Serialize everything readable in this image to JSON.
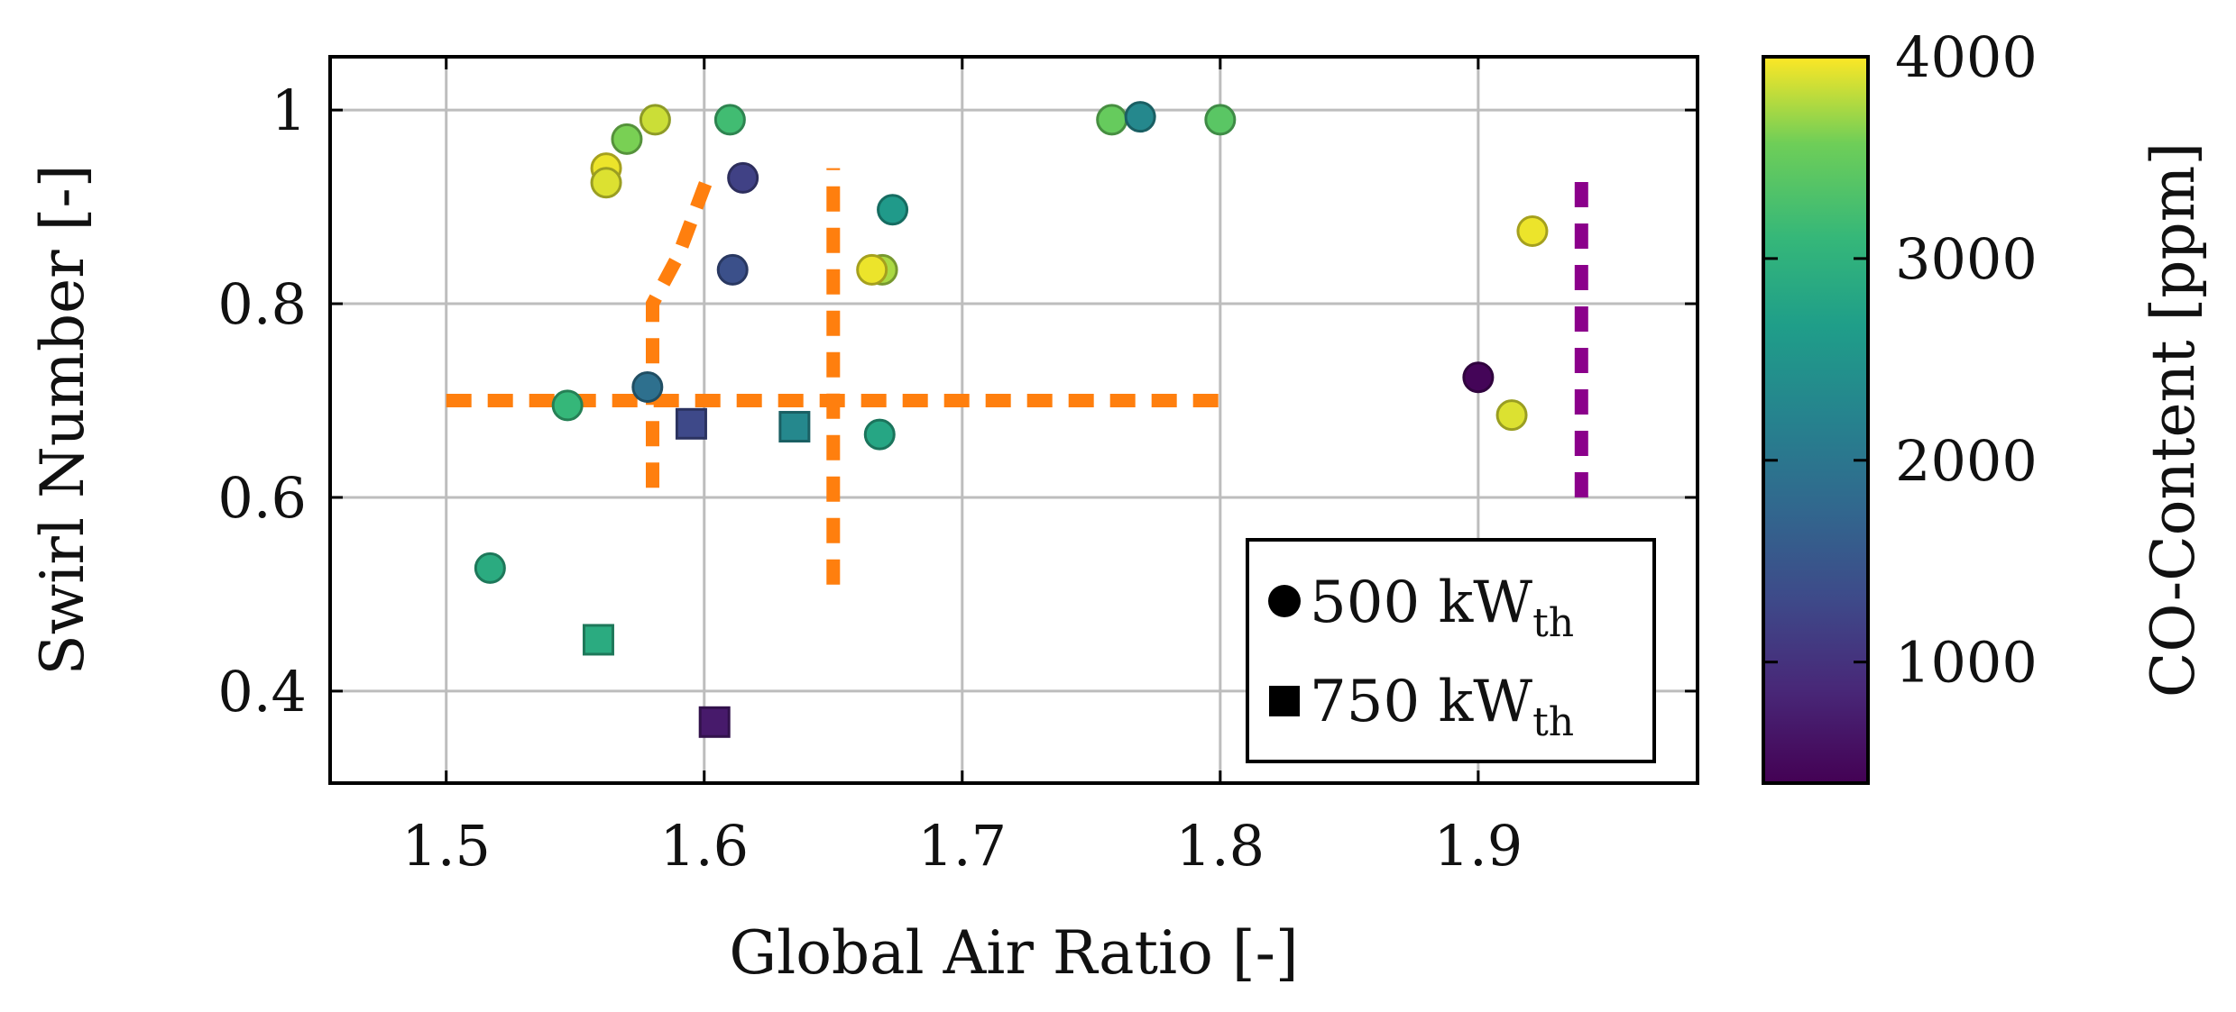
{
  "chart_data": {
    "type": "scatter",
    "xlabel": "Global Air Ratio [-]",
    "ylabel": "Swirl Number [-]",
    "xlim": [
      1.455,
      1.985
    ],
    "ylim": [
      0.305,
      1.055
    ],
    "xticks": [
      1.5,
      1.6,
      1.7,
      1.8,
      1.9
    ],
    "xtick_labels": [
      "1.5",
      "1.6",
      "1.7",
      "1.8",
      "1.9"
    ],
    "yticks": [
      0.4,
      0.6,
      0.8,
      1.0
    ],
    "ytick_labels": [
      "0.4",
      "0.6",
      "0.8",
      "1"
    ],
    "grid": true,
    "colorbar": {
      "label": "CO-Content [ppm]",
      "range": [
        400,
        4000
      ],
      "ticks": [
        1000,
        2000,
        3000,
        4000
      ],
      "tick_labels": [
        "1000",
        "2000",
        "3000",
        "4000"
      ],
      "colormap": "viridis"
    },
    "legend": {
      "position": "bottom-right",
      "entries": [
        {
          "marker": "circle",
          "label": "500 kW",
          "subscript": "th"
        },
        {
          "marker": "square",
          "label": "750 kW",
          "subscript": "th"
        }
      ]
    },
    "series": [
      {
        "name": "500 kWth",
        "marker": "circle",
        "points": [
          {
            "x": 1.562,
            "y": 0.94,
            "co": 3950
          },
          {
            "x": 1.562,
            "y": 0.925,
            "co": 3900
          },
          {
            "x": 1.57,
            "y": 0.97,
            "co": 3600
          },
          {
            "x": 1.581,
            "y": 0.99,
            "co": 3850
          },
          {
            "x": 1.61,
            "y": 0.99,
            "co": 3200
          },
          {
            "x": 1.615,
            "y": 0.93,
            "co": 1200
          },
          {
            "x": 1.611,
            "y": 0.835,
            "co": 1400
          },
          {
            "x": 1.669,
            "y": 0.835,
            "co": 3750
          },
          {
            "x": 1.665,
            "y": 0.835,
            "co": 3950
          },
          {
            "x": 1.673,
            "y": 0.897,
            "co": 2600
          },
          {
            "x": 1.758,
            "y": 0.99,
            "co": 3500
          },
          {
            "x": 1.769,
            "y": 0.993,
            "co": 2300
          },
          {
            "x": 1.8,
            "y": 0.99,
            "co": 3400
          },
          {
            "x": 1.921,
            "y": 0.875,
            "co": 3950
          },
          {
            "x": 1.9,
            "y": 0.724,
            "co": 450
          },
          {
            "x": 1.913,
            "y": 0.685,
            "co": 3900
          },
          {
            "x": 1.578,
            "y": 0.714,
            "co": 1900
          },
          {
            "x": 1.547,
            "y": 0.695,
            "co": 3100
          },
          {
            "x": 1.668,
            "y": 0.665,
            "co": 2800
          },
          {
            "x": 1.517,
            "y": 0.527,
            "co": 2900
          }
        ]
      },
      {
        "name": "750 kWth",
        "marker": "square",
        "points": [
          {
            "x": 1.595,
            "y": 0.676,
            "co": 1300
          },
          {
            "x": 1.635,
            "y": 0.673,
            "co": 2300
          },
          {
            "x": 1.559,
            "y": 0.453,
            "co": 2900
          },
          {
            "x": 1.604,
            "y": 0.368,
            "co": 700
          }
        ]
      }
    ],
    "annotations": [
      {
        "type": "dashed-line",
        "color": "#ff7f0e",
        "points": [
          [
            1.5,
            0.7
          ],
          [
            1.8,
            0.7
          ]
        ]
      },
      {
        "type": "dashed-line",
        "color": "#ff7f0e",
        "points": [
          [
            1.58,
            0.61
          ],
          [
            1.58,
            0.8
          ],
          [
            1.59,
            0.85
          ],
          [
            1.602,
            0.935
          ]
        ]
      },
      {
        "type": "dashed-line",
        "color": "#ff7f0e",
        "points": [
          [
            1.65,
            0.51
          ],
          [
            1.65,
            0.94
          ]
        ]
      },
      {
        "type": "dashed-line",
        "color": "#8b008b",
        "points": [
          [
            1.94,
            0.6
          ],
          [
            1.94,
            0.94
          ]
        ]
      }
    ]
  }
}
